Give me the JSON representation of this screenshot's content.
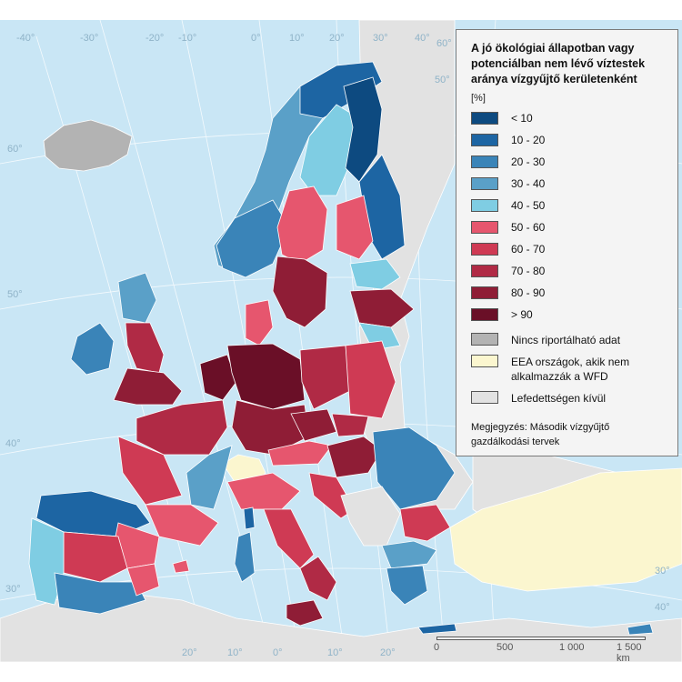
{
  "legend": {
    "title": "A jó ökológiai állapotban vagy\npotenciálban nem lévő víztestek\naránya vízgyűjtő kerületenként",
    "unit": "[%]",
    "classes": [
      {
        "label": "< 10",
        "color": "#0d4a80"
      },
      {
        "label": "10 - 20",
        "color": "#1d65a3"
      },
      {
        "label": "20 - 30",
        "color": "#3a84b8"
      },
      {
        "label": "30 - 40",
        "color": "#5aa0c8"
      },
      {
        "label": "40 - 50",
        "color": "#7fcde3"
      },
      {
        "label": "50 - 60",
        "color": "#e6566e"
      },
      {
        "label": "60 - 70",
        "color": "#cf3a54"
      },
      {
        "label": "70 - 80",
        "color": "#b02a45"
      },
      {
        "label": "80 - 90",
        "color": "#8f1d36"
      },
      {
        "label": "> 90",
        "color": "#6a0f27"
      }
    ],
    "extras": [
      {
        "label": "Nincs riportálható adat",
        "color": "#b3b3b3"
      },
      {
        "label": "EEA országok, akik nem\nalkalmazzák a WFD",
        "color": "#fbf6cf"
      },
      {
        "label": "Lefedettségen kívül",
        "color": "#e2e2e2"
      }
    ],
    "note": "Megjegyzés: Második vízgyűjtő gazdálkodási tervek"
  },
  "graticule": {
    "labels": [
      "-40°",
      "-30°",
      "-20°",
      "-10°",
      "0°",
      "10°",
      "20°",
      "30°",
      "40°",
      "50°",
      "60°",
      "60°",
      "50°",
      "40°",
      "30°",
      "20°",
      "10°",
      "0°",
      "10°",
      "20°",
      "30°",
      "40°"
    ]
  },
  "scale": {
    "ticks": [
      "0",
      "500",
      "1 000",
      "1 500 km"
    ]
  },
  "colors": {
    "sea": "#c9e6f5",
    "outside": "#e2e2e2",
    "no_data": "#b3b3b3",
    "non_wfd": "#fbf6cf"
  }
}
